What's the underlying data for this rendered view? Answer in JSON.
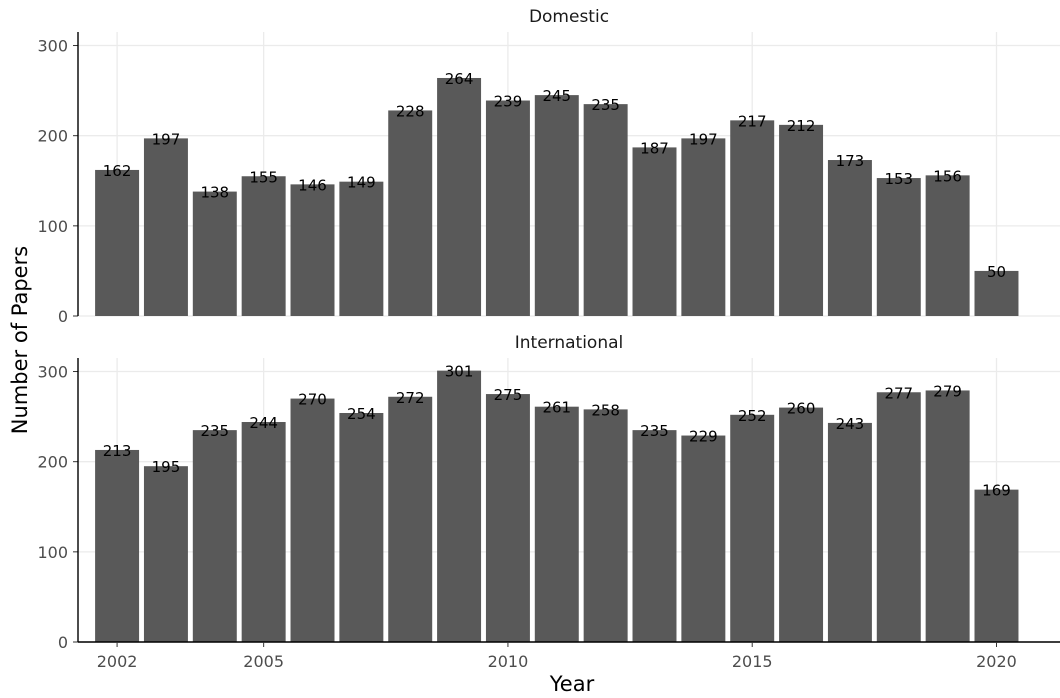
{
  "chart_data": {
    "type": "bar",
    "xlabel": "Year",
    "ylabel": "Number of Papers",
    "xlim": [
      2001.2,
      2021.3
    ],
    "ylim": [
      0,
      315
    ],
    "x_ticks": [
      2002,
      2005,
      2010,
      2015,
      2020
    ],
    "y_ticks": [
      0,
      100,
      200,
      300
    ],
    "grid": true,
    "colors": {
      "bar": "#595959",
      "grid": "#ebebeb",
      "axis": "#000000"
    },
    "x": [
      2002,
      2003,
      2004,
      2005,
      2006,
      2007,
      2008,
      2009,
      2010,
      2011,
      2012,
      2013,
      2014,
      2015,
      2016,
      2017,
      2018,
      2019,
      2020
    ],
    "panels": [
      {
        "title": "Domestic",
        "values": [
          162,
          197,
          138,
          155,
          146,
          149,
          228,
          264,
          239,
          245,
          235,
          187,
          197,
          217,
          212,
          173,
          153,
          156,
          50
        ]
      },
      {
        "title": "International",
        "values": [
          213,
          195,
          235,
          244,
          270,
          254,
          272,
          301,
          275,
          261,
          258,
          235,
          229,
          252,
          260,
          243,
          277,
          279,
          169
        ]
      }
    ]
  }
}
